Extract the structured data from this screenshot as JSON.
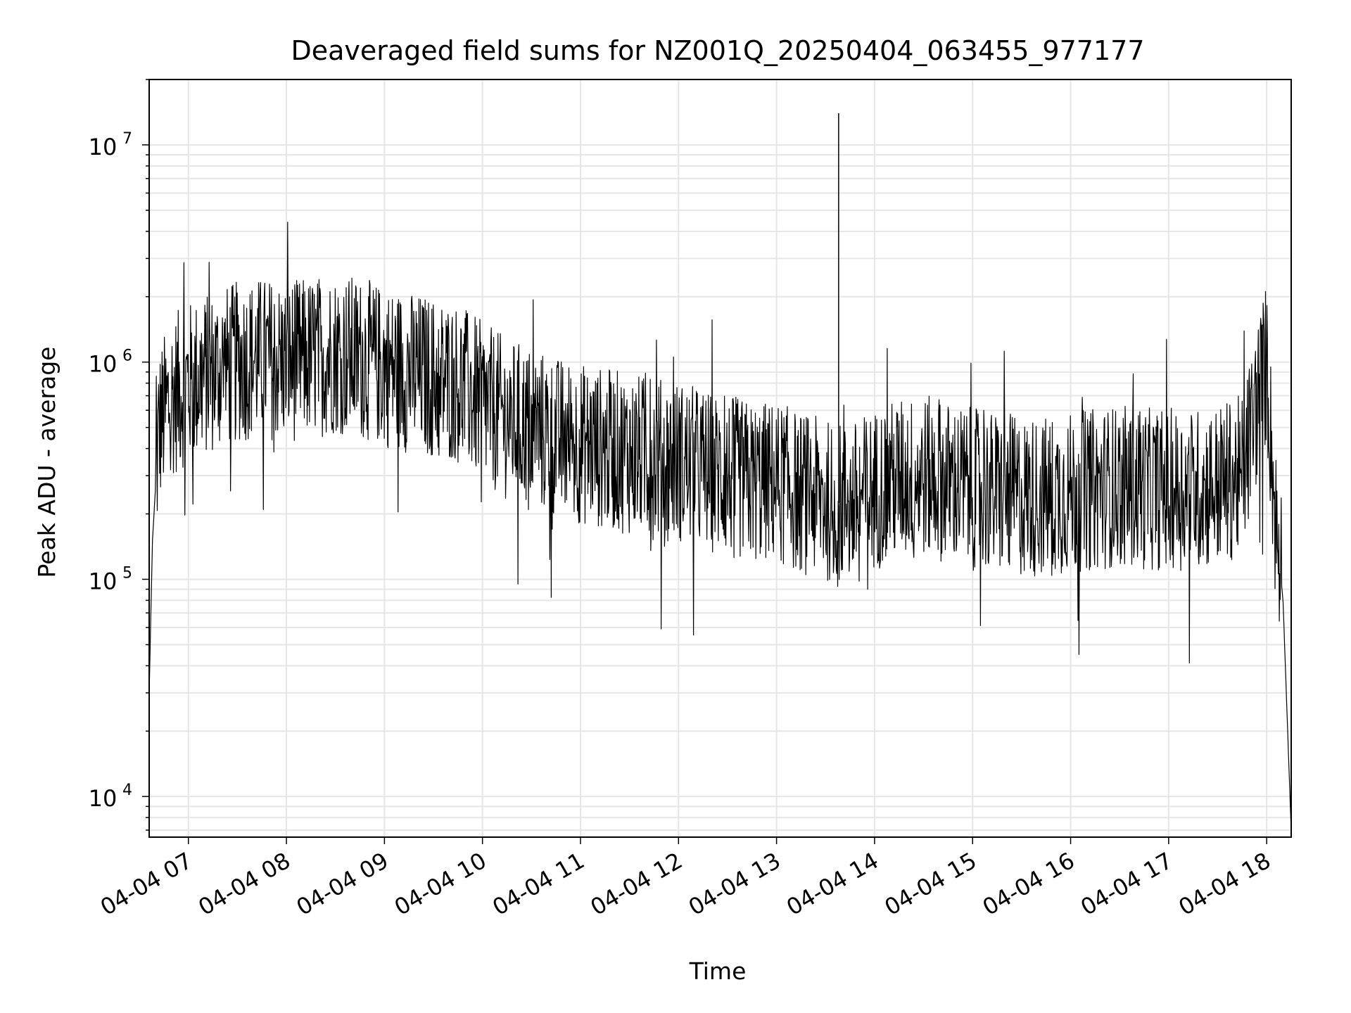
{
  "chart_data": {
    "type": "line",
    "title": "Deaveraged field sums for NZ001Q_20250404_063455_977177",
    "xlabel": "Time",
    "ylabel": "Peak ADU - average",
    "yscale": "log",
    "ylim": [
      6500,
      20000000
    ],
    "xlim": [
      "2025-04-04 06:36",
      "2025-04-04 18:15"
    ],
    "grid": "major and minor",
    "line_color": "#000000",
    "grid_color": "#e6e6e6",
    "x_ticks": [
      {
        "value": "2025-04-04 07:00",
        "label": "04-04 07"
      },
      {
        "value": "2025-04-04 08:00",
        "label": "04-04 08"
      },
      {
        "value": "2025-04-04 09:00",
        "label": "04-04 09"
      },
      {
        "value": "2025-04-04 10:00",
        "label": "04-04 10"
      },
      {
        "value": "2025-04-04 11:00",
        "label": "04-04 11"
      },
      {
        "value": "2025-04-04 12:00",
        "label": "04-04 12"
      },
      {
        "value": "2025-04-04 13:00",
        "label": "04-04 13"
      },
      {
        "value": "2025-04-04 14:00",
        "label": "04-04 14"
      },
      {
        "value": "2025-04-04 15:00",
        "label": "04-04 15"
      },
      {
        "value": "2025-04-04 16:00",
        "label": "04-04 16"
      },
      {
        "value": "2025-04-04 17:00",
        "label": "04-04 17"
      },
      {
        "value": "2025-04-04 18:00",
        "label": "04-04 18"
      }
    ],
    "y_ticks": [
      {
        "value": 10000,
        "base": "10",
        "exp": "4"
      },
      {
        "value": 100000,
        "base": "10",
        "exp": "5"
      },
      {
        "value": 1000000,
        "base": "10",
        "exp": "6"
      },
      {
        "value": 10000000,
        "base": "10",
        "exp": "7"
      }
    ],
    "series": [
      {
        "x": [
          "2025-04-04 06:36",
          "2025-04-04 06:38",
          "2025-04-04 06:42",
          "2025-04-04 06:50",
          "2025-04-04 07:00",
          "2025-04-04 07:15",
          "2025-04-04 07:30",
          "2025-04-04 07:45",
          "2025-04-04 08:00",
          "2025-04-04 08:15",
          "2025-04-04 08:30",
          "2025-04-04 08:45",
          "2025-04-04 09:00",
          "2025-04-04 09:15",
          "2025-04-04 09:30",
          "2025-04-04 09:45",
          "2025-04-04 10:00",
          "2025-04-04 10:15",
          "2025-04-04 10:30",
          "2025-04-04 10:45",
          "2025-04-04 11:00",
          "2025-04-04 11:15",
          "2025-04-04 11:30",
          "2025-04-04 11:45",
          "2025-04-04 12:00",
          "2025-04-04 12:15",
          "2025-04-04 12:30",
          "2025-04-04 12:45",
          "2025-04-04 13:00",
          "2025-04-04 13:15",
          "2025-04-04 13:30",
          "2025-04-04 13:45",
          "2025-04-04 14:00",
          "2025-04-04 14:15",
          "2025-04-04 14:30",
          "2025-04-04 14:45",
          "2025-04-04 15:00",
          "2025-04-04 15:15",
          "2025-04-04 15:30",
          "2025-04-04 15:45",
          "2025-04-04 16:00",
          "2025-04-04 16:15",
          "2025-04-04 16:30",
          "2025-04-04 16:45",
          "2025-04-04 17:00",
          "2025-04-04 17:15",
          "2025-04-04 17:30",
          "2025-04-04 17:45",
          "2025-04-04 17:55",
          "2025-04-04 18:00",
          "2025-04-04 18:05",
          "2025-04-04 18:10",
          "2025-04-04 18:15"
        ],
        "y": [
          30000,
          150000,
          500000,
          700000,
          800000,
          900000,
          1000000,
          1050000,
          1000000,
          1050000,
          1100000,
          1050000,
          950000,
          900000,
          850000,
          800000,
          650000,
          550000,
          500000,
          450000,
          420000,
          400000,
          380000,
          360000,
          350000,
          320000,
          300000,
          280000,
          280000,
          250000,
          230000,
          220000,
          260000,
          290000,
          300000,
          280000,
          260000,
          250000,
          240000,
          240000,
          250000,
          260000,
          270000,
          260000,
          260000,
          260000,
          270000,
          300000,
          700000,
          1000000,
          200000,
          80000,
          7000
        ]
      }
    ],
    "annotations": [
      {
        "x": "2025-04-04 13:38",
        "y": 14000000,
        "note": "spike"
      }
    ]
  }
}
